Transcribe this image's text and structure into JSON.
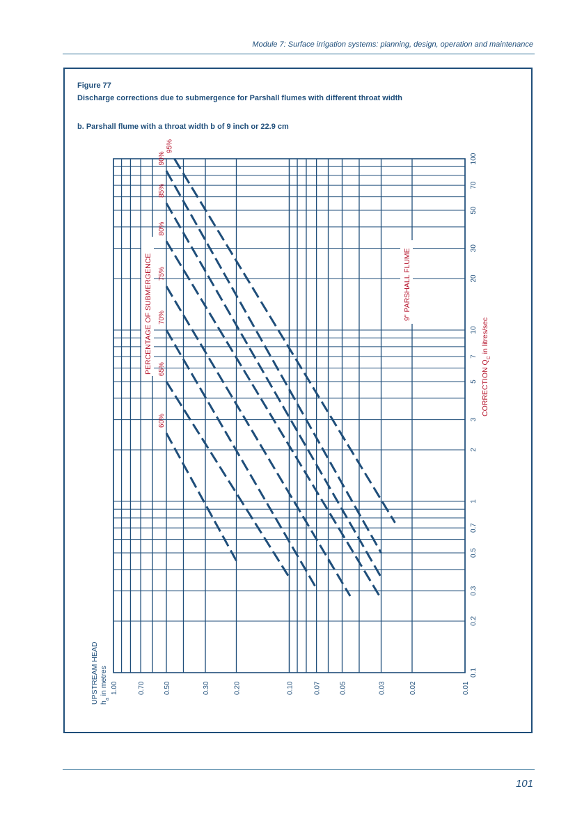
{
  "header": {
    "module_title": "Module 7: Surface irrigation systems: planning, design, operation and maintenance"
  },
  "figure": {
    "number": "Figure 77",
    "title": "Discharge corrections due to submergence for Parshall flumes with different throat width",
    "subtitle": "b. Parshall flume with a throat width b of 9 inch or 22.9 cm"
  },
  "colors": {
    "grid": "#1f4e7a",
    "accent": "#b5132b",
    "text": "#1f4e7a"
  },
  "chart_data": {
    "type": "line",
    "scale": "log-log",
    "grid": true,
    "xlabel": "UPSTREAM HEAD",
    "xlabel_sub": "h",
    "xlabel_sub2": "a",
    "xlabel_unit": " in metres",
    "ylabel": "CORRECTION Q",
    "ylabel_sub": "C",
    "ylabel_unit": " in litres/sec",
    "xlim": [
      0.01,
      1.0
    ],
    "ylim": [
      0.1,
      100
    ],
    "x_ticks": [
      1.0,
      0.7,
      0.5,
      0.3,
      0.2,
      0.1,
      0.07,
      0.05,
      0.03,
      0.02,
      0.01
    ],
    "x_tick_labels": [
      "1.00",
      "0.70",
      "0.50",
      "0.30",
      "0.20",
      "0.10",
      "0.07",
      "0.05",
      "0.03",
      "0.02",
      "0.01"
    ],
    "y_ticks": [
      0.1,
      0.2,
      0.3,
      0.5,
      0.7,
      1,
      2,
      3,
      5,
      7,
      10,
      20,
      30,
      50,
      70,
      100
    ],
    "y_tick_labels": [
      "0.1",
      "0.2",
      "0.3",
      "0.5",
      "0.7",
      "1",
      "2",
      "3",
      "5",
      "7",
      "10",
      "20",
      "30",
      "50",
      "70",
      "100"
    ],
    "group_label": "PERCENTAGE OF SUBMERGENCE",
    "flume_label": "9\" PARSHALL FLUME",
    "series": [
      {
        "name": "60%",
        "points": [
          [
            0.5,
            2.5
          ],
          [
            0.2,
            0.45
          ]
        ]
      },
      {
        "name": "65%",
        "points": [
          [
            0.5,
            5.0
          ],
          [
            0.1,
            0.36
          ]
        ]
      },
      {
        "name": "70%",
        "points": [
          [
            0.5,
            10.0
          ],
          [
            0.07,
            0.31
          ]
        ]
      },
      {
        "name": "75%",
        "points": [
          [
            0.5,
            18.0
          ],
          [
            0.045,
            0.28
          ]
        ]
      },
      {
        "name": "80%",
        "points": [
          [
            0.5,
            33.0
          ],
          [
            0.03,
            0.27
          ]
        ]
      },
      {
        "name": "85%",
        "points": [
          [
            0.5,
            55.0
          ],
          [
            0.03,
            0.36
          ]
        ]
      },
      {
        "name": "90%",
        "points": [
          [
            0.5,
            85.0
          ],
          [
            0.03,
            0.5
          ]
        ]
      },
      {
        "name": "95%",
        "points": [
          [
            0.45,
            100.0
          ],
          [
            0.025,
            0.75
          ]
        ]
      }
    ]
  },
  "footer": {
    "page_number": "101"
  }
}
